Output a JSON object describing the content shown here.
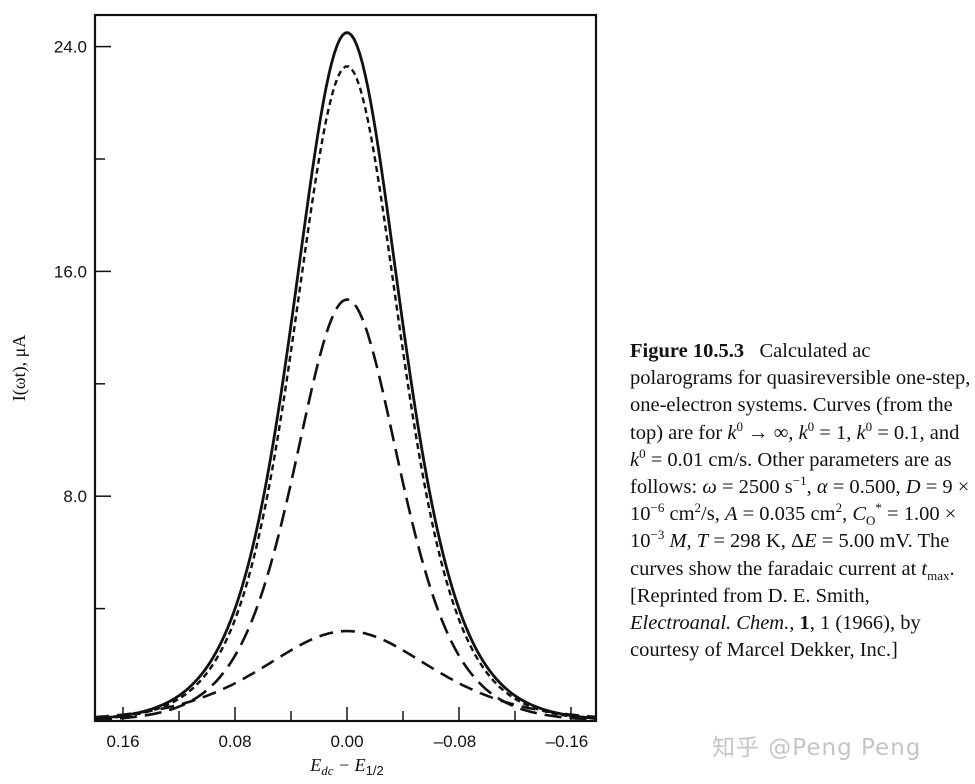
{
  "chart_data": {
    "type": "line",
    "title": "",
    "xlabel": "E_dc − E_1/2",
    "xlabel_parts": {
      "main": "E",
      "sub1": "dc",
      "mid": " − E",
      "sub2": "1/2"
    },
    "ylabel": "I(ωt), μA",
    "xlim": [
      0.18,
      -0.18
    ],
    "ylim": [
      0,
      25.5
    ],
    "x_reversed": true,
    "grid": false,
    "legend": "none (described in caption)",
    "x_ticks": [
      0.16,
      0.12,
      0.08,
      0.04,
      0.0,
      -0.04,
      -0.08,
      -0.12,
      -0.16
    ],
    "x_tick_labels": [
      {
        "value": 0.16,
        "label": "0.16"
      },
      {
        "value": 0.08,
        "label": "0.08"
      },
      {
        "value": 0.0,
        "label": "0.00"
      },
      {
        "value": -0.08,
        "label": "–0.08"
      },
      {
        "value": -0.16,
        "label": "–0.16"
      }
    ],
    "y_ticks": [
      4.0,
      8.0,
      12.0,
      16.0,
      20.0,
      24.0
    ],
    "y_tick_labels": [
      {
        "value": 8.0,
        "label": "8.0"
      },
      {
        "value": 16.0,
        "label": "16.0"
      },
      {
        "value": 24.0,
        "label": "24.0"
      }
    ],
    "series": [
      {
        "name": "k0 → ∞",
        "style": "solid",
        "peak_x": 0.0,
        "peak_y": 24.5,
        "half_width_param": 0.0514
      },
      {
        "name": "k0 = 1 cm/s",
        "style": "short-dash",
        "peak_x": 0.0,
        "peak_y": 23.3,
        "half_width_param": 0.0505
      },
      {
        "name": "k0 = 0.1 cm/s",
        "style": "long-dash",
        "peak_x": 0.0,
        "peak_y": 15.0,
        "half_width_param": 0.0505
      },
      {
        "name": "k0 = 0.01 cm/s",
        "style": "dash",
        "peak_x": 0.0,
        "peak_y": 3.2,
        "half_width_param": 0.08
      }
    ],
    "sampled_values": {
      "x": [
        0.16,
        0.12,
        0.08,
        0.06,
        0.04,
        0.02,
        0.0,
        -0.02,
        -0.04,
        -0.06,
        -0.08,
        -0.12,
        -0.16
      ],
      "k0_inf": [
        0.2,
        0.9,
        3.9,
        7.7,
        13.3,
        20.3,
        24.5,
        20.3,
        13.3,
        7.7,
        3.9,
        0.9,
        0.2
      ],
      "k0_1": [
        0.2,
        0.9,
        3.9,
        7.4,
        12.7,
        19.3,
        23.3,
        19.3,
        12.7,
        7.4,
        3.9,
        0.9,
        0.2
      ],
      "k0_0.1": [
        0.1,
        0.6,
        2.6,
        4.8,
        8.2,
        12.4,
        15.0,
        12.4,
        8.2,
        4.8,
        2.6,
        0.6,
        0.1
      ],
      "k0_0.01": [
        0.2,
        0.6,
        1.3,
        1.9,
        2.5,
        3.0,
        3.2,
        3.0,
        2.5,
        1.9,
        1.3,
        0.6,
        0.2
      ]
    }
  },
  "caption": {
    "label": "Figure 10.5.3",
    "text_html": "Calculated ac polarograms for quasireversible one-step, one-electron systems. Curves (from the top) are for <i>k</i><sup>0</sup> → ∞, <i>k</i><sup>0</sup> = 1, <i>k</i><sup>0</sup> = 0.1, and <i>k</i><sup>0</sup> = 0.01 cm/s. Other parameters are as follows: <i>ω</i> = 2500 s<sup>−1</sup>, <i>α</i> = 0.500, <i>D</i> = 9 × 10<sup>−6</sup> cm<sup>2</sup>/s, <i>A</i> = 0.035 cm<sup>2</sup>, <i>C</i><sub>O</sub><sup>*</sup> = 1.00 × 10<sup>−3</sup> <i>M</i>, <i>T</i> = 298 K, Δ<i>E</i> = 5.00 mV. The curves show the faradaic current at <i>t</i><sub>max</sub>. [Reprinted from D. E. Smith, <i>Electroanal. Chem.</i>, <b>1</b>, 1 (1966), by courtesy of Marcel Dekker, Inc.]"
  },
  "watermark": "知乎 @Peng Peng"
}
